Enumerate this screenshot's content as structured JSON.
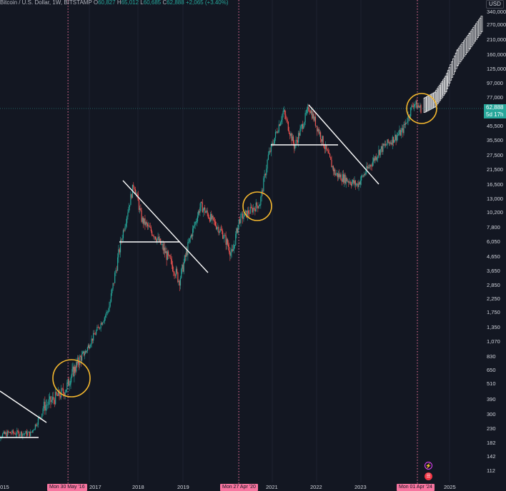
{
  "legend": {
    "symbol": "Bitcoin / U.S. Dollar, 1W, BITSTAMP",
    "o_label": "O",
    "o": "60,827",
    "h_label": "H",
    "h": "65,012",
    "l_label": "L",
    "l": "60,685",
    "c_label": "C",
    "c": "62,888",
    "change": "+2,065 (+3.40%)"
  },
  "currency_label": "USD",
  "last_price": {
    "value": "62,888",
    "countdown": "5d 17h"
  },
  "y_axis": {
    "scale": "log",
    "ticks": [
      "340,000",
      "270,000",
      "210,000",
      "160,000",
      "125,000",
      "97,000",
      "77,000",
      "45,500",
      "35,500",
      "27,500",
      "21,500",
      "16,500",
      "13,000",
      "10,200",
      "7,800",
      "6,050",
      "4,650",
      "3,650",
      "2,850",
      "2,250",
      "1,750",
      "1,350",
      "1,070",
      "830",
      "650",
      "510",
      "390",
      "300",
      "230",
      "182",
      "142",
      "112"
    ]
  },
  "x_axis": {
    "ticks": [
      "2015",
      "2017",
      "2018",
      "2019",
      "2021",
      "2022",
      "2023",
      "2025"
    ]
  },
  "halving_markers": [
    {
      "label": "Mon 30 May '16"
    },
    {
      "label": "Mon 27 Apr '20"
    },
    {
      "label": "Mon 01 Apr '24"
    }
  ],
  "colors": {
    "background": "#131722",
    "up": "#26a69a",
    "down": "#ef5350",
    "projection": "#ffffff",
    "circle": "#f5b82e",
    "halving_line": "#f7749f",
    "trendline": "#ffffff"
  },
  "chart_data": {
    "type": "candlestick",
    "title": "",
    "y_scale": "log",
    "ylim": [
      100,
      380000
    ],
    "annotations": {
      "halving_vertical_lines": [
        "2016-05-30",
        "2020-04-27",
        "2024-04-01"
      ],
      "circles": [
        "2016 halving",
        "2020 halving",
        "2024 halving"
      ],
      "projection": "white projected candles 2024-2025"
    },
    "price_path": [
      {
        "date": "2014-12",
        "price": 320
      },
      {
        "date": "2015-01",
        "price": 220
      },
      {
        "date": "2015-04",
        "price": 240
      },
      {
        "date": "2015-09",
        "price": 235
      },
      {
        "date": "2015-12",
        "price": 430
      },
      {
        "date": "2016-05",
        "price": 530
      },
      {
        "date": "2016-07",
        "price": 650
      },
      {
        "date": "2016-12",
        "price": 950
      },
      {
        "date": "2017-06",
        "price": 2500
      },
      {
        "date": "2017-12",
        "price": 17000
      },
      {
        "date": "2018-02",
        "price": 9000
      },
      {
        "date": "2018-06",
        "price": 6500
      },
      {
        "date": "2018-11",
        "price": 4000
      },
      {
        "date": "2018-12",
        "price": 3500
      },
      {
        "date": "2019-06",
        "price": 11500
      },
      {
        "date": "2019-12",
        "price": 7200
      },
      {
        "date": "2020-03",
        "price": 5000
      },
      {
        "date": "2020-05",
        "price": 9000
      },
      {
        "date": "2020-10",
        "price": 12000
      },
      {
        "date": "2020-12",
        "price": 27000
      },
      {
        "date": "2021-04",
        "price": 60000
      },
      {
        "date": "2021-07",
        "price": 32000
      },
      {
        "date": "2021-11",
        "price": 65000
      },
      {
        "date": "2022-06",
        "price": 20000
      },
      {
        "date": "2022-12",
        "price": 16500
      },
      {
        "date": "2023-06",
        "price": 30000
      },
      {
        "date": "2023-12",
        "price": 42000
      },
      {
        "date": "2024-03",
        "price": 70000
      },
      {
        "date": "2024-05",
        "price": 62888
      }
    ],
    "projection_path": [
      {
        "date": "2024-06",
        "price": 65000
      },
      {
        "date": "2024-09",
        "price": 72000
      },
      {
        "date": "2024-12",
        "price": 95000
      },
      {
        "date": "2025-03",
        "price": 150000
      },
      {
        "date": "2025-06",
        "price": 200000
      },
      {
        "date": "2025-09",
        "price": 270000
      }
    ]
  }
}
